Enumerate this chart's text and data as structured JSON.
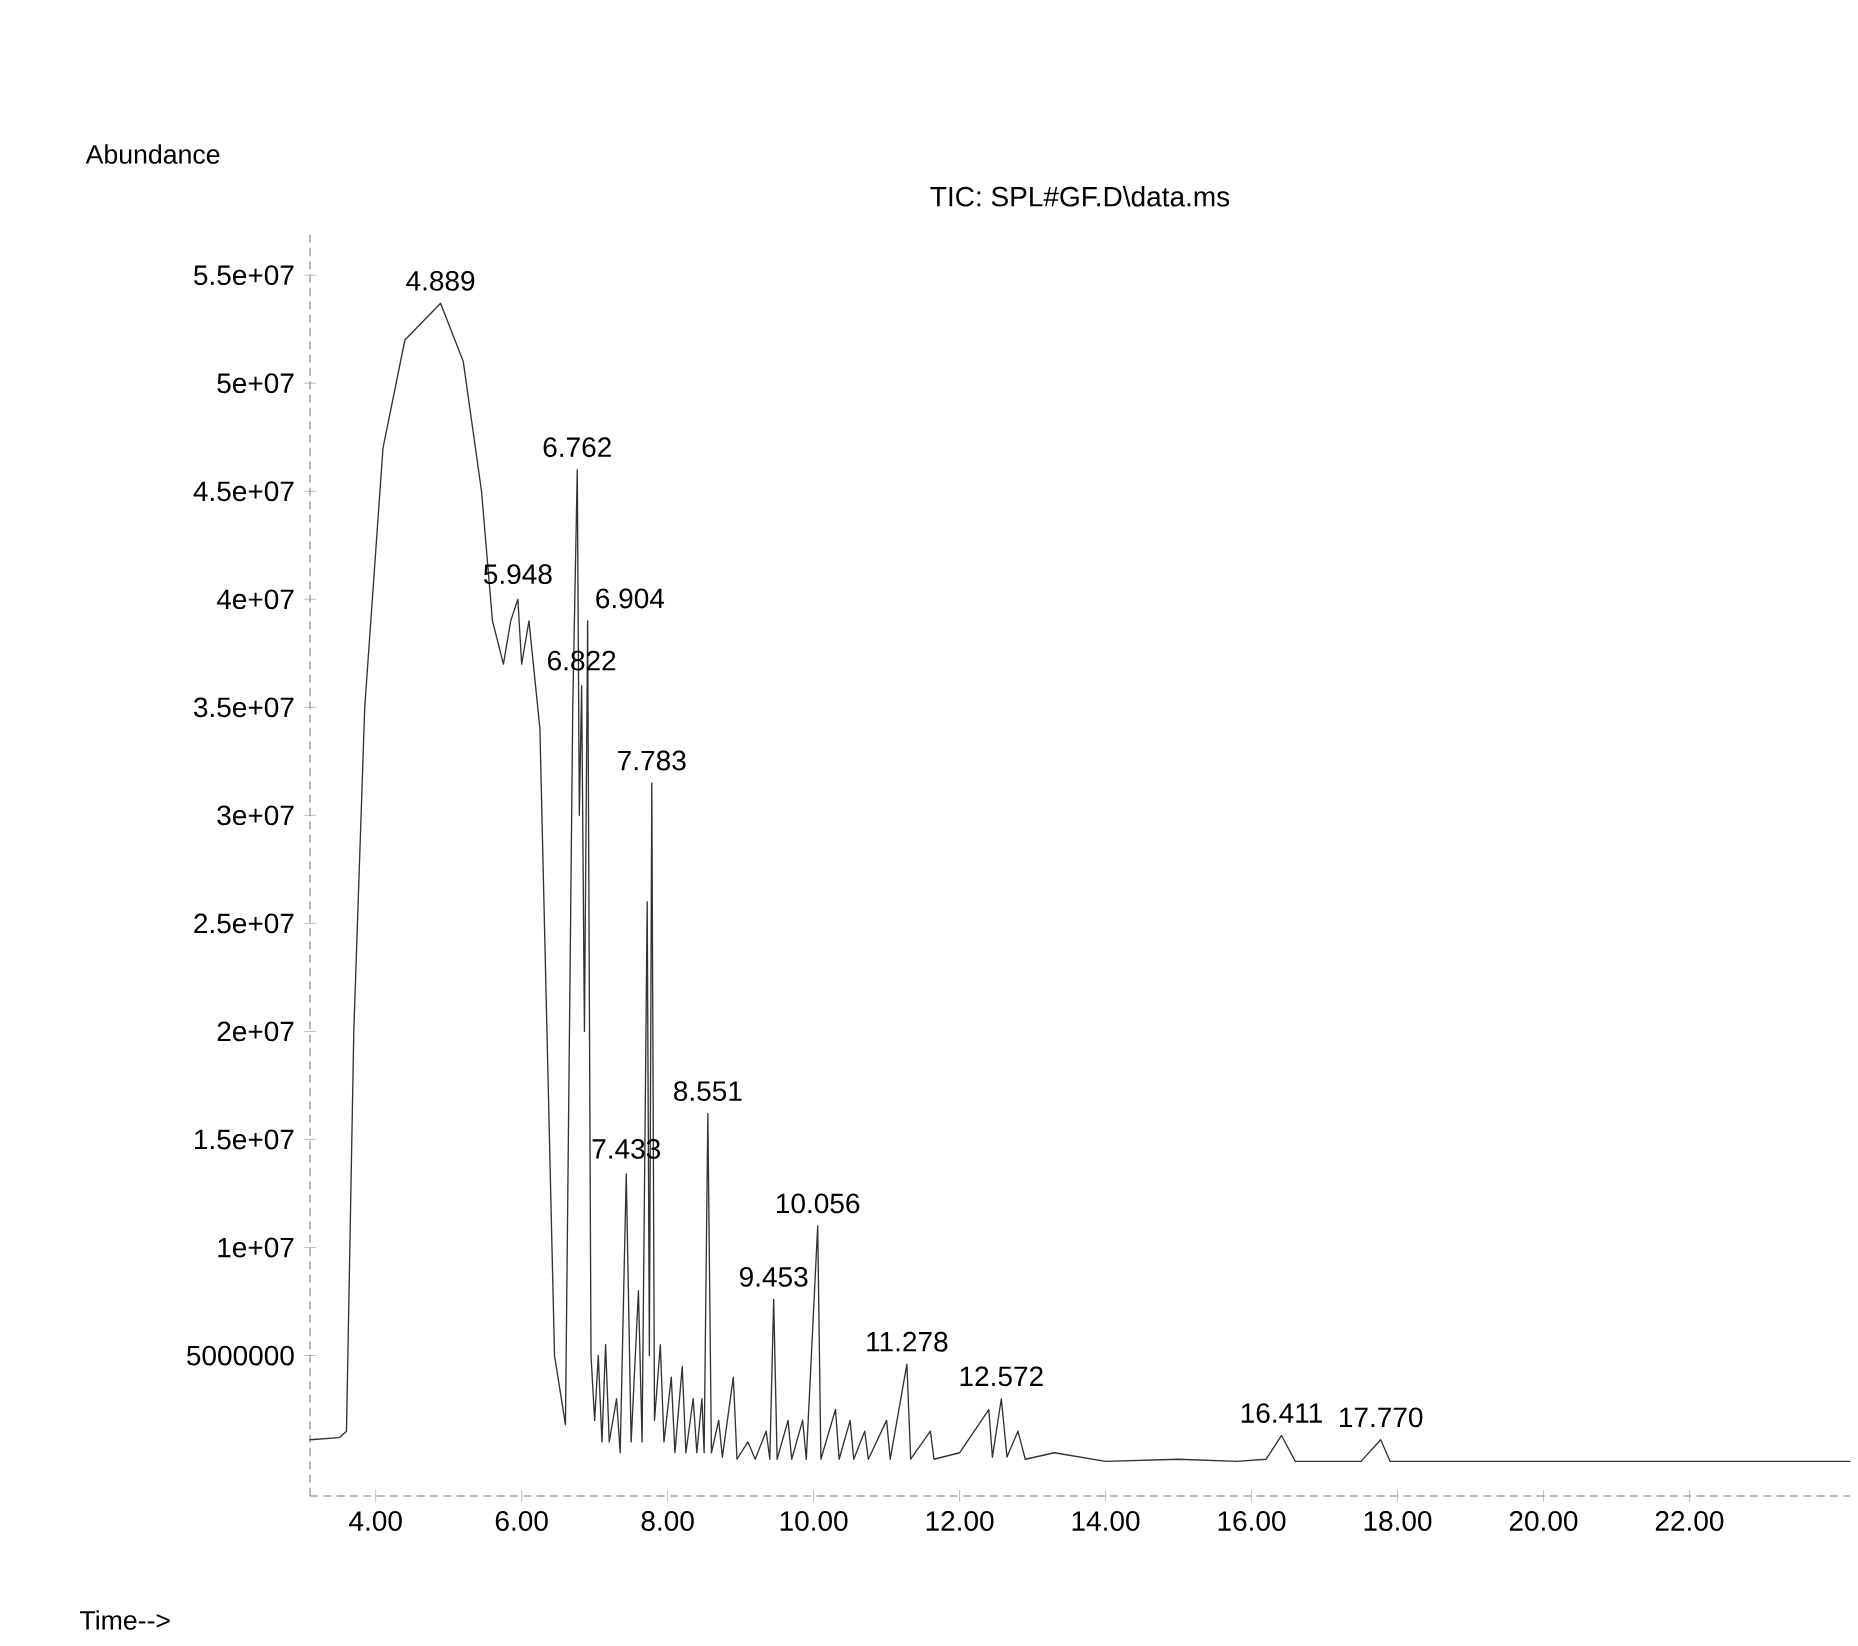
{
  "chart_data": {
    "type": "line",
    "title": "TIC: SPL#GF.D\\data.ms",
    "xlabel": "Time-->",
    "ylabel": "Abundance",
    "x": [
      3.1,
      3.5,
      3.6,
      3.7,
      3.85,
      4.1,
      4.4,
      4.889,
      5.2,
      5.45,
      5.6,
      5.75,
      5.85,
      5.948,
      6.0,
      6.1,
      6.25,
      6.45,
      6.6,
      6.7,
      6.762,
      6.79,
      6.822,
      6.86,
      6.904,
      6.95,
      7.0,
      7.05,
      7.1,
      7.15,
      7.2,
      7.3,
      7.35,
      7.433,
      7.5,
      7.6,
      7.65,
      7.72,
      7.75,
      7.783,
      7.82,
      7.9,
      7.95,
      8.05,
      8.1,
      8.2,
      8.25,
      8.35,
      8.4,
      8.47,
      8.5,
      8.551,
      8.6,
      8.7,
      8.75,
      8.9,
      8.95,
      9.1,
      9.2,
      9.35,
      9.4,
      9.453,
      9.5,
      9.65,
      9.7,
      9.85,
      9.9,
      10.056,
      10.1,
      10.3,
      10.35,
      10.5,
      10.55,
      10.7,
      10.75,
      11.0,
      11.05,
      11.278,
      11.33,
      11.6,
      11.65,
      12.0,
      12.4,
      12.45,
      12.572,
      12.65,
      12.8,
      12.9,
      13.3,
      14.0,
      15.0,
      15.8,
      16.2,
      16.411,
      16.6,
      17.5,
      17.77,
      17.9,
      20.0,
      22.0,
      24.2
    ],
    "series": [
      {
        "color": "#333333",
        "values": [
          1100000,
          1200000,
          1500000,
          20000000,
          35000000,
          47000000,
          52000000,
          53700000,
          51000000,
          45000000,
          39000000,
          37000000,
          39000000,
          40000000,
          37000000,
          39000000,
          34000000,
          5000000,
          1800000,
          35000000,
          46000000,
          30000000,
          36000000,
          20000000,
          39000000,
          5000000,
          2000000,
          5000000,
          1000000,
          5500000,
          1000000,
          3000000,
          500000,
          13400000,
          1000000,
          8000000,
          1000000,
          26000000,
          5000000,
          31500000,
          2000000,
          5500000,
          1000000,
          4000000,
          500000,
          4500000,
          500000,
          3000000,
          500000,
          3000000,
          500000,
          16200000,
          500000,
          2000000,
          300000,
          4000000,
          200000,
          1000000,
          200000,
          1500000,
          200000,
          7600000,
          200000,
          2000000,
          200000,
          2000000,
          200000,
          11000000,
          200000,
          2500000,
          200000,
          2000000,
          200000,
          1500000,
          200000,
          2000000,
          200000,
          4600000,
          200000,
          1500000,
          200000,
          500000,
          2500000,
          300000,
          3000000,
          300000,
          1500000,
          200000,
          500000,
          100000,
          200000,
          100000,
          200000,
          1300000,
          100000,
          100000,
          1100000,
          100000,
          100000,
          100000,
          100000
        ]
      }
    ],
    "marker": "none",
    "line_style": "solid",
    "xlim": [
      3.1,
      24.2
    ],
    "ylim": [
      -1500000,
      57000000
    ],
    "xticks": [
      {
        "value": 4,
        "label": "4.00"
      },
      {
        "value": 6,
        "label": "6.00"
      },
      {
        "value": 8,
        "label": "8.00"
      },
      {
        "value": 10,
        "label": "10.00"
      },
      {
        "value": 12,
        "label": "12.00"
      },
      {
        "value": 14,
        "label": "14.00"
      },
      {
        "value": 16,
        "label": "16.00"
      },
      {
        "value": 18,
        "label": "18.00"
      },
      {
        "value": 20,
        "label": "20.00"
      },
      {
        "value": 22,
        "label": "22.00"
      }
    ],
    "yticks": [
      5000000,
      {
        "value": 10000000,
        "label": "1e+07"
      },
      {
        "value": 15000000,
        "label": "1.5e+07"
      },
      {
        "value": 20000000,
        "label": "2e+07"
      },
      {
        "value": 25000000,
        "label": "2.5e+07"
      },
      {
        "value": 30000000,
        "label": "3e+07"
      },
      {
        "value": 35000000,
        "label": "3.5e+07"
      },
      {
        "value": 40000000,
        "label": "4e+07"
      },
      {
        "value": 45000000,
        "label": "4.5e+07"
      },
      {
        "value": 50000000,
        "label": "5e+07"
      },
      {
        "value": 55000000,
        "label": "5.5e+07"
      }
    ],
    "annotations": [
      {
        "text": "4.889",
        "x": 4.889,
        "y": 53700000
      },
      {
        "text": "5.948",
        "x": 5.948,
        "y": 40000000
      },
      {
        "text": "6.762",
        "x": 6.762,
        "y": 46000000
      },
      {
        "text": "6.822",
        "x": 6.822,
        "y": 36000000
      },
      {
        "text": "6.904",
        "x": 6.904,
        "y": 39000000
      },
      {
        "text": "7.783",
        "x": 7.783,
        "y": 31500000
      },
      {
        "text": "7.433",
        "x": 7.433,
        "y": 13400000
      },
      {
        "text": "8.551",
        "x": 8.551,
        "y": 16200000
      },
      {
        "text": "9.453",
        "x": 9.453,
        "y": 7600000
      },
      {
        "text": "10.056",
        "x": 10.056,
        "y": 11000000
      },
      {
        "text": "11.278",
        "x": 11.278,
        "y": 4600000
      },
      {
        "text": "12.572",
        "x": 12.572,
        "y": 3000000
      },
      {
        "text": "16.411",
        "x": 16.411,
        "y": 1300000
      },
      {
        "text": "17.770",
        "x": 17.77,
        "y": 1100000
      }
    ]
  }
}
